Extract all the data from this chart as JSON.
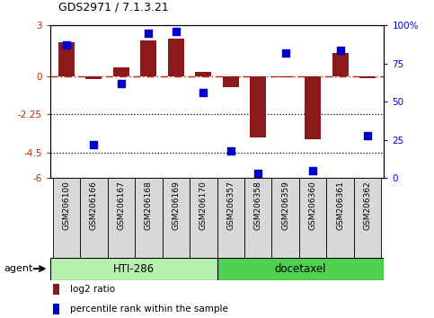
{
  "title": "GDS2971 / 7.1.3.21",
  "samples": [
    "GSM206100",
    "GSM206166",
    "GSM206167",
    "GSM206168",
    "GSM206169",
    "GSM206170",
    "GSM206357",
    "GSM206358",
    "GSM206359",
    "GSM206360",
    "GSM206361",
    "GSM206362"
  ],
  "log2_ratio": [
    2.0,
    -0.15,
    0.55,
    2.1,
    2.2,
    0.25,
    -0.65,
    -3.6,
    -0.05,
    -3.7,
    1.35,
    -0.1
  ],
  "percentile": [
    87,
    22,
    62,
    95,
    96,
    56,
    18,
    3,
    82,
    5,
    84,
    28
  ],
  "groups": [
    {
      "label": "HTI-286",
      "start": 0,
      "end": 5,
      "color": "#b8f0b0"
    },
    {
      "label": "docetaxel",
      "start": 6,
      "end": 11,
      "color": "#50d050"
    }
  ],
  "bar_color": "#8B1A1A",
  "dot_color": "#0000CD",
  "ylim_left": [
    -6,
    3
  ],
  "ylim_right": [
    0,
    100
  ],
  "yticks_left": [
    3,
    0,
    -2.25,
    -4.5,
    -6
  ],
  "yticks_right": [
    100,
    75,
    50,
    25,
    0
  ],
  "ytick_labels_left": [
    "3",
    "0",
    "-2.25",
    "-4.5",
    "-6"
  ],
  "ytick_labels_right": [
    "100%",
    "75",
    "50",
    "25",
    "0"
  ],
  "hline_zero": 0,
  "hline_dotted1": -2.25,
  "hline_dotted2": -4.5,
  "agent_label": "agent",
  "legend_bar_label": "log2 ratio",
  "legend_dot_label": "percentile rank within the sample",
  "background_color": "#ffffff"
}
